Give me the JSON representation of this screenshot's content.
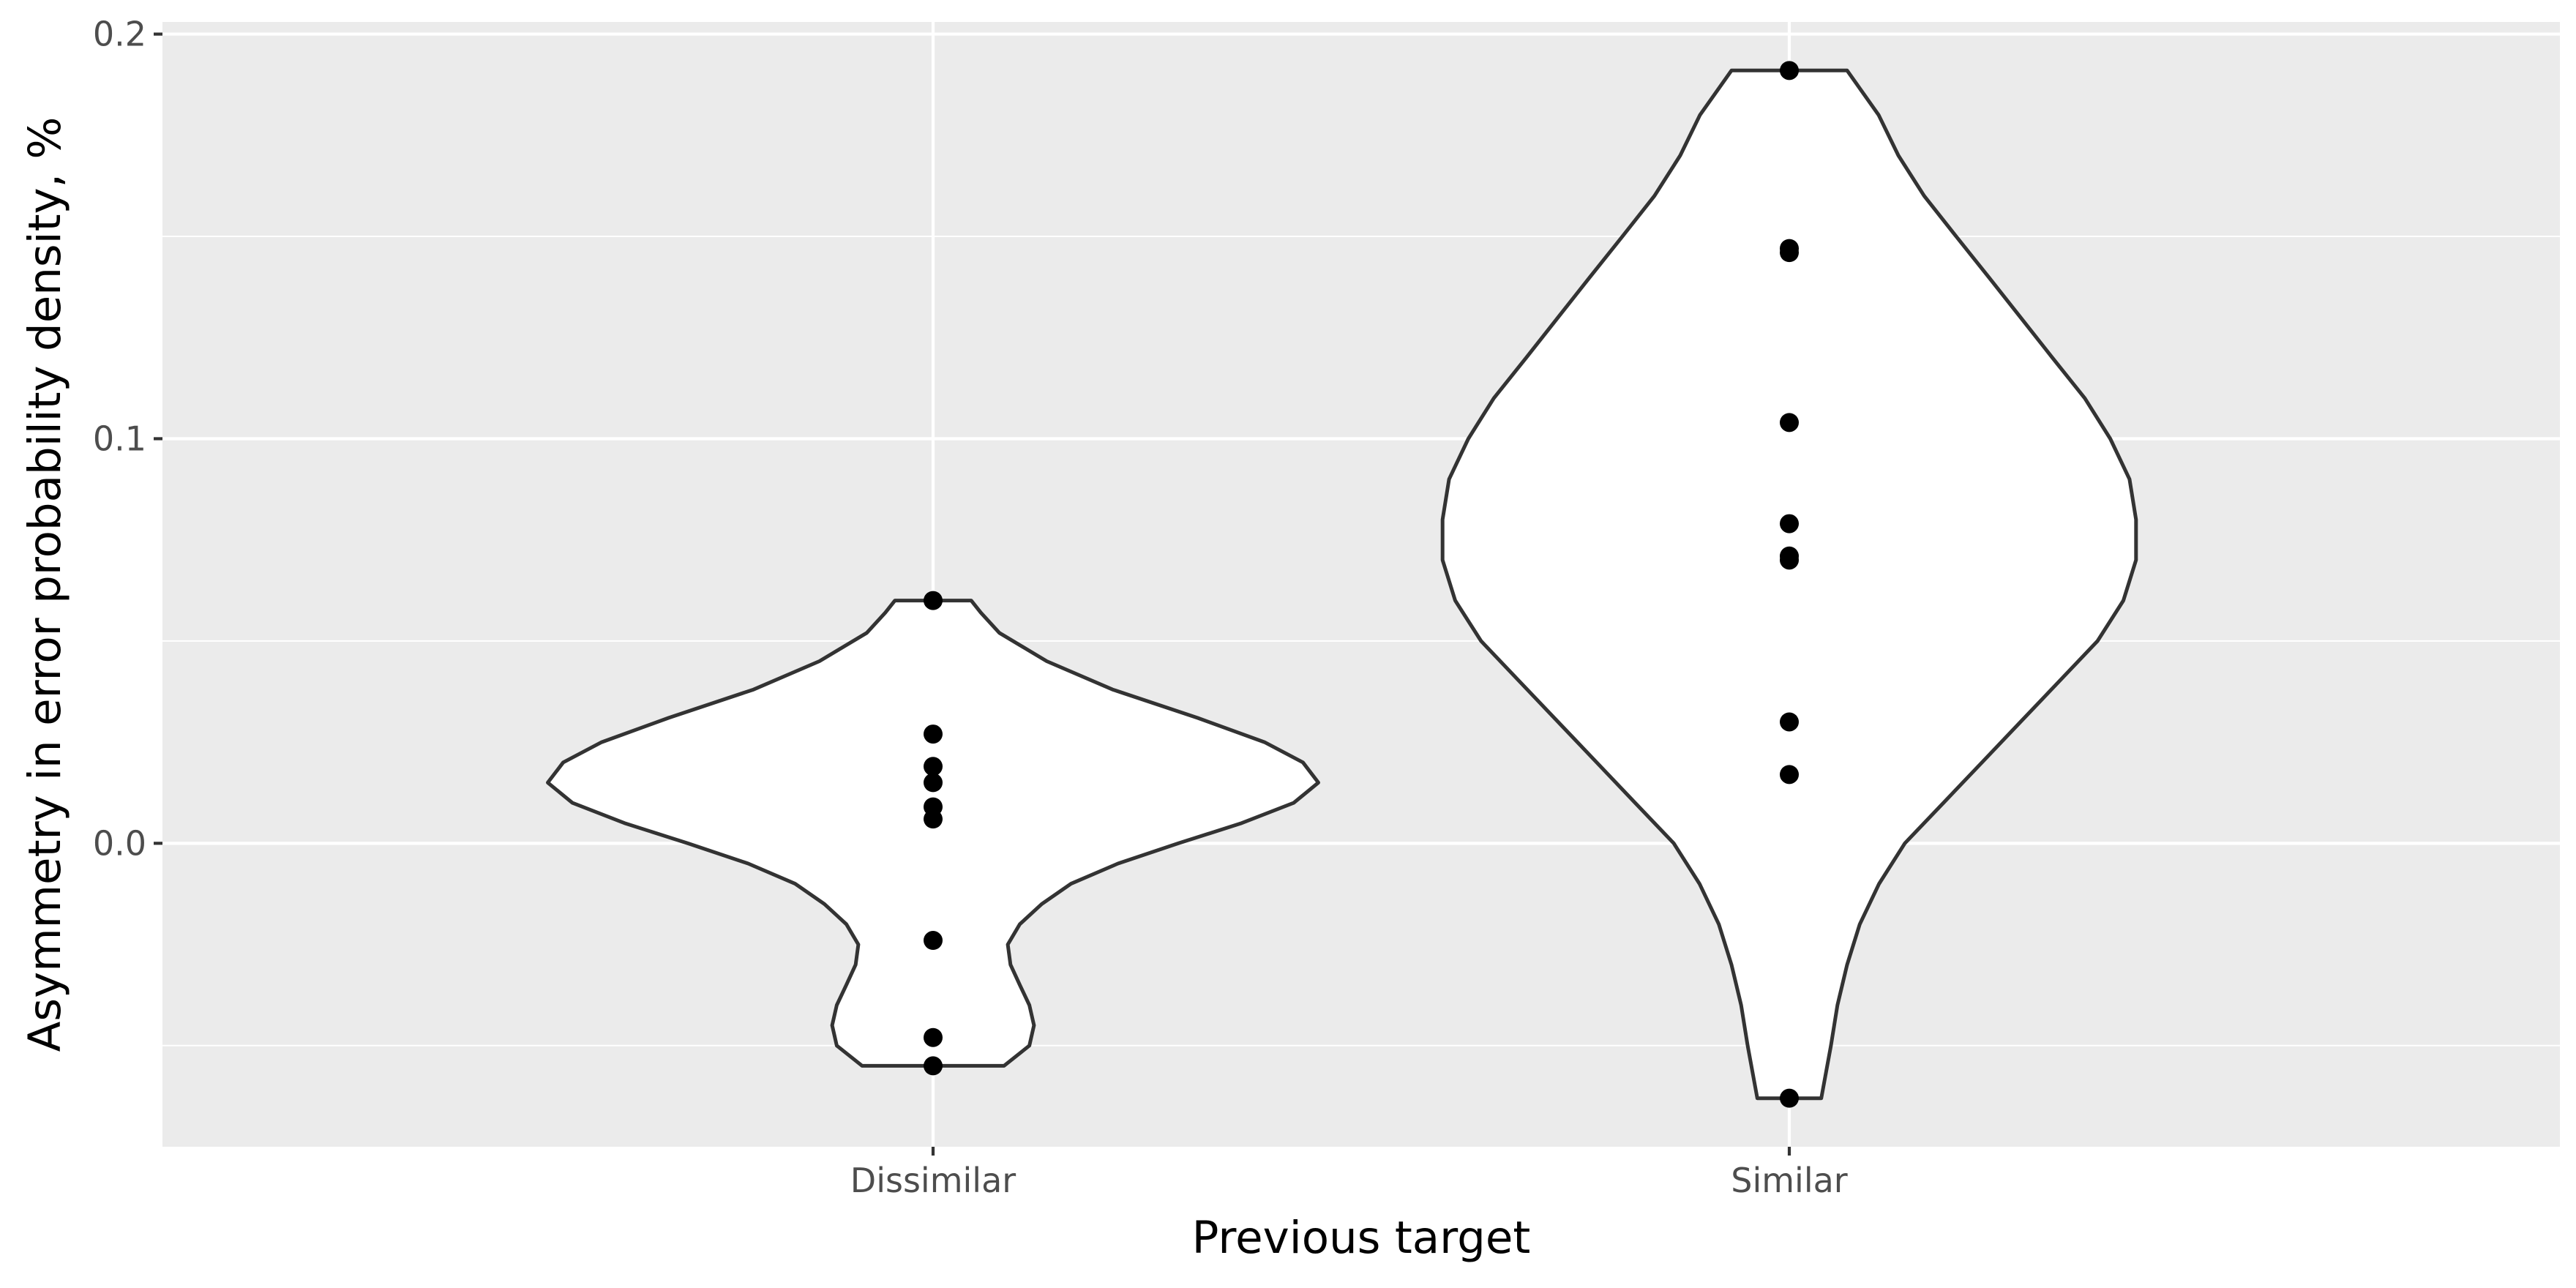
{
  "chart_data": {
    "type": "violin",
    "title": "",
    "xlabel": "Previous target",
    "ylabel": "Asymmetry in error probability density, %",
    "categories": [
      "Dissimilar",
      "Similar"
    ],
    "ylim": [
      -0.075,
      0.203
    ],
    "yticks": [
      0.0,
      0.1,
      0.2
    ],
    "ytick_labels": [
      "0.0",
      "0.1",
      "0.2"
    ],
    "grid": true,
    "legend": "none",
    "series": [
      {
        "category": "Dissimilar",
        "points": [
          0.06,
          0.027,
          0.019,
          0.015,
          0.009,
          0.006,
          -0.024,
          -0.048,
          -0.055
        ],
        "density_profile": [
          {
            "y": 0.06,
            "w": 0.099
          },
          {
            "y": 0.057,
            "w": 0.124
          },
          {
            "y": 0.052,
            "w": 0.172
          },
          {
            "y": 0.045,
            "w": 0.295
          },
          {
            "y": 0.038,
            "w": 0.466
          },
          {
            "y": 0.031,
            "w": 0.686
          },
          {
            "y": 0.025,
            "w": 0.86
          },
          {
            "y": 0.02,
            "w": 0.96
          },
          {
            "y": 0.015,
            "w": 1.0
          },
          {
            "y": 0.01,
            "w": 0.936
          },
          {
            "y": 0.005,
            "w": 0.801
          },
          {
            "y": 0.0,
            "w": 0.637
          },
          {
            "y": -0.005,
            "w": 0.48
          },
          {
            "y": -0.01,
            "w": 0.358
          },
          {
            "y": -0.015,
            "w": 0.282
          },
          {
            "y": -0.02,
            "w": 0.225
          },
          {
            "y": -0.025,
            "w": 0.194
          },
          {
            "y": -0.03,
            "w": 0.201
          },
          {
            "y": -0.035,
            "w": 0.225
          },
          {
            "y": -0.04,
            "w": 0.25
          },
          {
            "y": -0.045,
            "w": 0.262
          },
          {
            "y": -0.05,
            "w": 0.25
          },
          {
            "y": -0.055,
            "w": 0.184
          }
        ]
      },
      {
        "category": "Similar",
        "points": [
          0.191,
          0.147,
          0.146,
          0.104,
          0.079,
          0.071,
          0.07,
          0.03,
          0.017,
          -0.063
        ],
        "density_profile": [
          {
            "y": 0.191,
            "w": 0.15
          },
          {
            "y": 0.18,
            "w": 0.232
          },
          {
            "y": 0.17,
            "w": 0.283
          },
          {
            "y": 0.16,
            "w": 0.35
          },
          {
            "y": 0.15,
            "w": 0.433
          },
          {
            "y": 0.14,
            "w": 0.517
          },
          {
            "y": 0.13,
            "w": 0.6
          },
          {
            "y": 0.12,
            "w": 0.683
          },
          {
            "y": 0.11,
            "w": 0.767
          },
          {
            "y": 0.1,
            "w": 0.833
          },
          {
            "y": 0.09,
            "w": 0.883
          },
          {
            "y": 0.08,
            "w": 0.9
          },
          {
            "y": 0.07,
            "w": 0.9
          },
          {
            "y": 0.06,
            "w": 0.867
          },
          {
            "y": 0.05,
            "w": 0.8
          },
          {
            "y": 0.04,
            "w": 0.7
          },
          {
            "y": 0.03,
            "w": 0.6
          },
          {
            "y": 0.02,
            "w": 0.5
          },
          {
            "y": 0.01,
            "w": 0.4
          },
          {
            "y": 0.0,
            "w": 0.3
          },
          {
            "y": -0.01,
            "w": 0.233
          },
          {
            "y": -0.02,
            "w": 0.183
          },
          {
            "y": -0.03,
            "w": 0.15
          },
          {
            "y": -0.04,
            "w": 0.125
          },
          {
            "y": -0.05,
            "w": 0.108
          },
          {
            "y": -0.063,
            "w": 0.083
          }
        ]
      }
    ]
  }
}
